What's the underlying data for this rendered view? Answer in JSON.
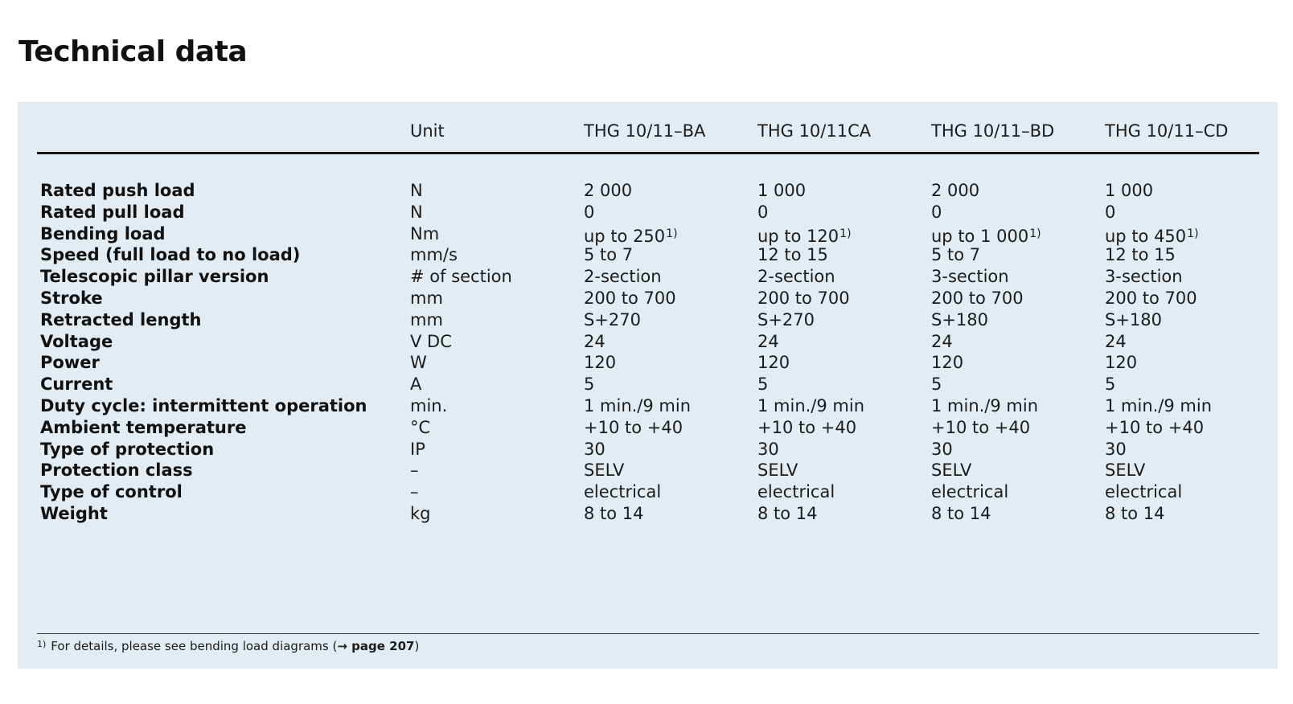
{
  "title": "Technical data",
  "table": {
    "header": {
      "label": "",
      "unit": "Unit",
      "models": [
        "THG 10/11–BA",
        "THG 10/11CA",
        "THG 10/11–BD",
        "THG 10/11–CD"
      ]
    },
    "rows": [
      {
        "label": "Rated push load",
        "unit": "N",
        "values": [
          "2 000",
          "1 000",
          "2 000",
          "1 000"
        ]
      },
      {
        "label": "Rated pull load",
        "unit": "N",
        "values": [
          "0",
          "0",
          "0",
          "0"
        ]
      },
      {
        "label": "Bending load",
        "unit": "Nm",
        "values": [
          "up to 250",
          "up to 120",
          "up to 1 000",
          "up to 450"
        ],
        "footnote_mark": "1)"
      },
      {
        "label": "Speed (full load to no load)",
        "unit": "mm/s",
        "values": [
          "5 to 7",
          "12 to 15",
          "5 to 7",
          "12 to 15"
        ]
      },
      {
        "label": "Telescopic pillar version",
        "unit": "# of section",
        "values": [
          "2-section",
          "2-section",
          "3-section",
          "3-section"
        ]
      },
      {
        "label": "Stroke",
        "unit": "mm",
        "values": [
          "200 to 700",
          "200 to 700",
          "200 to 700",
          "200 to 700"
        ]
      },
      {
        "label": "Retracted length",
        "unit": "mm",
        "values": [
          "S+270",
          "S+270",
          "S+180",
          "S+180"
        ]
      },
      {
        "label": "Voltage",
        "unit": "V DC",
        "values": [
          "24",
          "24",
          "24",
          "24"
        ]
      },
      {
        "label": "Power",
        "unit": "W",
        "values": [
          "120",
          "120",
          "120",
          "120"
        ]
      },
      {
        "label": "Current",
        "unit": "A",
        "values": [
          "5",
          "5",
          "5",
          "5"
        ]
      },
      {
        "label": "Duty cycle: intermittent operation",
        "unit": "min.",
        "values": [
          "1 min./9 min",
          "1 min./9 min",
          "1 min./9 min",
          "1 min./9 min"
        ]
      },
      {
        "label": "Ambient temperature",
        "unit": "°C",
        "values": [
          "+10 to +40",
          "+10 to +40",
          "+10 to +40",
          "+10 to +40"
        ]
      },
      {
        "label": "Type of protection",
        "unit": "IP",
        "values": [
          "30",
          "30",
          "30",
          "30"
        ]
      },
      {
        "label": "Protection class",
        "unit": "–",
        "values": [
          "SELV",
          "SELV",
          "SELV",
          "SELV"
        ]
      },
      {
        "label": "Type of control",
        "unit": "–",
        "values": [
          "electrical",
          "electrical",
          "electrical",
          "electrical"
        ]
      },
      {
        "label": "Weight",
        "unit": "kg",
        "values": [
          "8 to 14",
          "8 to 14",
          "8 to 14",
          "8 to 14"
        ]
      }
    ]
  },
  "footnote": {
    "mark": "1)",
    "text": "For details, please see bending load diagrams (",
    "ref": "→ page 207",
    "close": ")"
  },
  "colors": {
    "panel_background": "#e2ecf2",
    "text": "#111111"
  }
}
